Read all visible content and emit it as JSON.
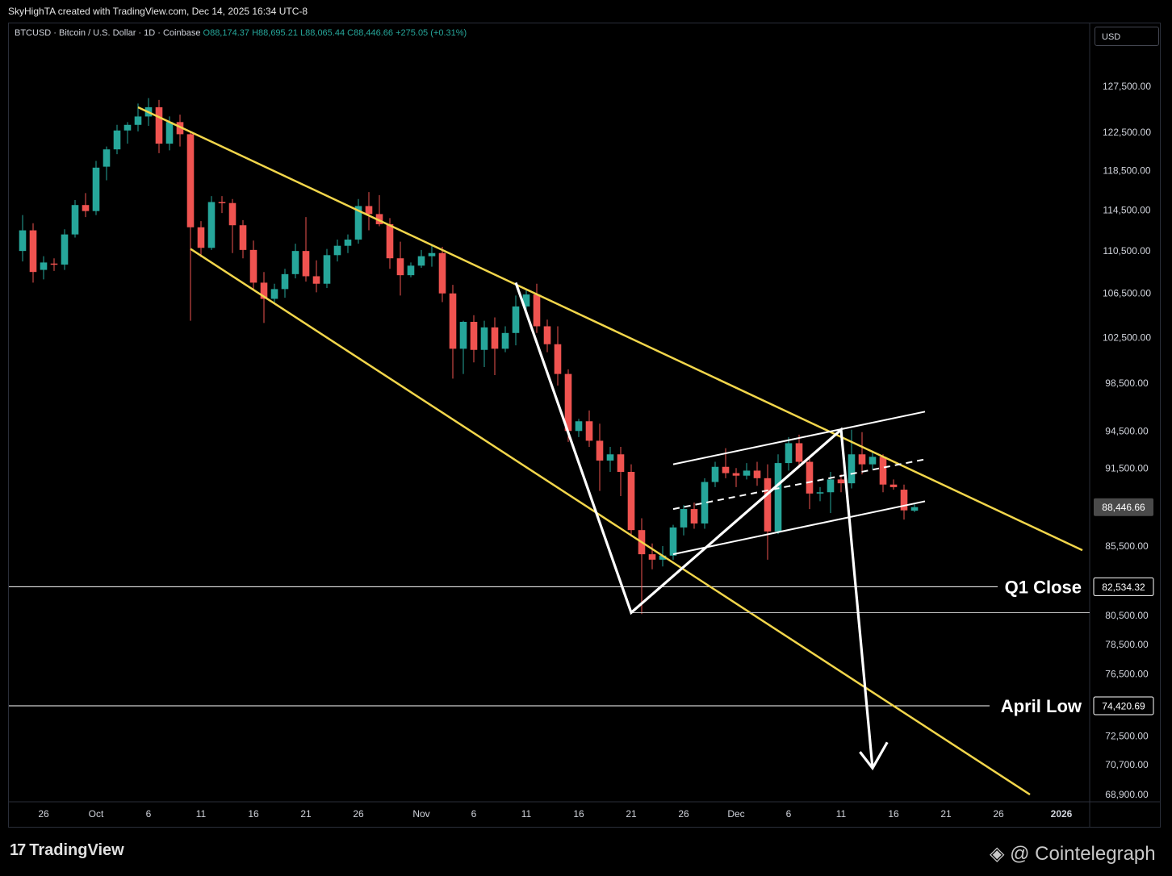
{
  "header": {
    "attribution": "SkyHighTA created with TradingView.com, Dec 14, 2025 16:34 UTC-8"
  },
  "symbol": {
    "name": "BTCUSD · Bitcoin / U.S. Dollar · 1D · Coinbase",
    "open": "O88,174.37",
    "high": "H88,695.21",
    "low": "L88,065.44",
    "close": "C88,446.66",
    "change": "+275.05 (+0.31%)"
  },
  "currency": "USD",
  "branding": {
    "tradingview": "TradingView",
    "cointelegraph": "@ Cointelegraph"
  },
  "colors": {
    "up": "#26a69a",
    "down": "#ef5350",
    "trendline": "#f2d64b",
    "pattern": "#ffffff"
  },
  "chart_data": {
    "type": "candlestick",
    "yscale": "log",
    "y_ticks": [
      "127,500.00",
      "122,500.00",
      "118,500.00",
      "114,500.00",
      "110,500.00",
      "106,500.00",
      "102,500.00",
      "98,500.00",
      "94,500.00",
      "91,500.00",
      "85,500.00",
      "80,500.00",
      "78,500.00",
      "76,500.00",
      "72,500.00",
      "70,700.00",
      "68,900.00"
    ],
    "x_ticks": [
      {
        "label": "26",
        "day": -9
      },
      {
        "label": "Oct",
        "day": -4
      },
      {
        "label": "6",
        "day": 1
      },
      {
        "label": "11",
        "day": 6
      },
      {
        "label": "16",
        "day": 11
      },
      {
        "label": "21",
        "day": 16
      },
      {
        "label": "26",
        "day": 21
      },
      {
        "label": "Nov",
        "day": 27
      },
      {
        "label": "6",
        "day": 32
      },
      {
        "label": "11",
        "day": 37
      },
      {
        "label": "16",
        "day": 42
      },
      {
        "label": "21",
        "day": 47
      },
      {
        "label": "26",
        "day": 52
      },
      {
        "label": "Dec",
        "day": 57
      },
      {
        "label": "6",
        "day": 62
      },
      {
        "label": "11",
        "day": 67
      },
      {
        "label": "16",
        "day": 72
      },
      {
        "label": "21",
        "day": 77
      },
      {
        "label": "26",
        "day": 82
      },
      {
        "label": "2026",
        "day": 88
      }
    ],
    "price_labels": [
      {
        "text": "88,446.66",
        "price": 88446.66,
        "style": "current"
      },
      {
        "text": "82,534.32",
        "price": 82534.32,
        "style": "level"
      },
      {
        "text": "74,420.69",
        "price": 74420.69,
        "style": "level"
      }
    ],
    "levels": [
      {
        "name": "Q1 Close",
        "price": 82534.32
      },
      {
        "name": "April Low",
        "price": 74420.69
      }
    ],
    "candles": [
      {
        "d": -11,
        "o": 110500,
        "h": 114000,
        "l": 109500,
        "c": 112500
      },
      {
        "d": -10,
        "o": 112500,
        "h": 113200,
        "l": 107500,
        "c": 108500
      },
      {
        "d": -9,
        "o": 108700,
        "h": 110000,
        "l": 107800,
        "c": 109400
      },
      {
        "d": -8,
        "o": 109300,
        "h": 109800,
        "l": 108600,
        "c": 109200
      },
      {
        "d": -7,
        "o": 109200,
        "h": 112600,
        "l": 108700,
        "c": 112100
      },
      {
        "d": -6,
        "o": 112100,
        "h": 115500,
        "l": 111800,
        "c": 115000
      },
      {
        "d": -5,
        "o": 115000,
        "h": 116200,
        "l": 113800,
        "c": 114400
      },
      {
        "d": -4,
        "o": 114400,
        "h": 119500,
        "l": 114000,
        "c": 118800
      },
      {
        "d": -3,
        "o": 118900,
        "h": 121000,
        "l": 117500,
        "c": 120700
      },
      {
        "d": -2,
        "o": 120700,
        "h": 123300,
        "l": 120200,
        "c": 122700
      },
      {
        "d": -1,
        "o": 122700,
        "h": 123600,
        "l": 121300,
        "c": 123300
      },
      {
        "d": 0,
        "o": 123300,
        "h": 125600,
        "l": 122600,
        "c": 124200
      },
      {
        "d": 1,
        "o": 124200,
        "h": 126200,
        "l": 123200,
        "c": 125200
      },
      {
        "d": 2,
        "o": 125200,
        "h": 126000,
        "l": 120300,
        "c": 121300
      },
      {
        "d": 3,
        "o": 121300,
        "h": 124200,
        "l": 120600,
        "c": 123600
      },
      {
        "d": 4,
        "o": 123600,
        "h": 124400,
        "l": 121000,
        "c": 122300
      },
      {
        "d": 5,
        "o": 122300,
        "h": 122600,
        "l": 104000,
        "c": 112800
      },
      {
        "d": 6,
        "o": 112800,
        "h": 113400,
        "l": 109900,
        "c": 110800
      },
      {
        "d": 7,
        "o": 110800,
        "h": 115900,
        "l": 110600,
        "c": 115300
      },
      {
        "d": 8,
        "o": 115300,
        "h": 115900,
        "l": 114200,
        "c": 115200
      },
      {
        "d": 9,
        "o": 115200,
        "h": 115600,
        "l": 110300,
        "c": 113000
      },
      {
        "d": 10,
        "o": 113000,
        "h": 113500,
        "l": 109800,
        "c": 110600
      },
      {
        "d": 11,
        "o": 110600,
        "h": 111500,
        "l": 106800,
        "c": 107500
      },
      {
        "d": 12,
        "o": 107500,
        "h": 108500,
        "l": 103800,
        "c": 106000
      },
      {
        "d": 13,
        "o": 106000,
        "h": 107400,
        "l": 105500,
        "c": 106900
      },
      {
        "d": 14,
        "o": 106900,
        "h": 108800,
        "l": 106100,
        "c": 108300
      },
      {
        "d": 15,
        "o": 108300,
        "h": 111200,
        "l": 107900,
        "c": 110500
      },
      {
        "d": 16,
        "o": 110500,
        "h": 113800,
        "l": 107600,
        "c": 108100
      },
      {
        "d": 17,
        "o": 108100,
        "h": 109600,
        "l": 106600,
        "c": 107400
      },
      {
        "d": 18,
        "o": 107400,
        "h": 110700,
        "l": 107000,
        "c": 110100
      },
      {
        "d": 19,
        "o": 110100,
        "h": 111600,
        "l": 109500,
        "c": 111000
      },
      {
        "d": 20,
        "o": 111000,
        "h": 112100,
        "l": 110300,
        "c": 111600
      },
      {
        "d": 21,
        "o": 111600,
        "h": 115600,
        "l": 111200,
        "c": 114900
      },
      {
        "d": 22,
        "o": 114900,
        "h": 116300,
        "l": 112500,
        "c": 114100
      },
      {
        "d": 23,
        "o": 114100,
        "h": 116000,
        "l": 112900,
        "c": 113100
      },
      {
        "d": 24,
        "o": 113100,
        "h": 113700,
        "l": 108800,
        "c": 109800
      },
      {
        "d": 25,
        "o": 109800,
        "h": 111400,
        "l": 106300,
        "c": 108200
      },
      {
        "d": 26,
        "o": 108200,
        "h": 109400,
        "l": 108000,
        "c": 109100
      },
      {
        "d": 27,
        "o": 109100,
        "h": 110600,
        "l": 108900,
        "c": 110000
      },
      {
        "d": 28,
        "o": 110000,
        "h": 111100,
        "l": 109000,
        "c": 110300
      },
      {
        "d": 29,
        "o": 110300,
        "h": 110900,
        "l": 105700,
        "c": 106500
      },
      {
        "d": 30,
        "o": 106500,
        "h": 107300,
        "l": 98900,
        "c": 101500
      },
      {
        "d": 31,
        "o": 101500,
        "h": 104000,
        "l": 99300,
        "c": 103900
      },
      {
        "d": 32,
        "o": 103900,
        "h": 104500,
        "l": 100300,
        "c": 101400
      },
      {
        "d": 33,
        "o": 101400,
        "h": 104000,
        "l": 99900,
        "c": 103400
      },
      {
        "d": 34,
        "o": 103400,
        "h": 104300,
        "l": 99200,
        "c": 101500
      },
      {
        "d": 35,
        "o": 101500,
        "h": 103500,
        "l": 101200,
        "c": 102900
      },
      {
        "d": 36,
        "o": 102900,
        "h": 106300,
        "l": 101800,
        "c": 105300
      },
      {
        "d": 37,
        "o": 105300,
        "h": 106900,
        "l": 104600,
        "c": 106400
      },
      {
        "d": 38,
        "o": 106400,
        "h": 107400,
        "l": 102900,
        "c": 103500
      },
      {
        "d": 39,
        "o": 103500,
        "h": 104100,
        "l": 101200,
        "c": 101900
      },
      {
        "d": 40,
        "o": 101900,
        "h": 103500,
        "l": 98300,
        "c": 99300
      },
      {
        "d": 41,
        "o": 99300,
        "h": 99700,
        "l": 93600,
        "c": 94500
      },
      {
        "d": 42,
        "o": 94500,
        "h": 95500,
        "l": 94000,
        "c": 95300
      },
      {
        "d": 43,
        "o": 95300,
        "h": 96200,
        "l": 93200,
        "c": 93700
      },
      {
        "d": 44,
        "o": 93700,
        "h": 95100,
        "l": 89700,
        "c": 92100
      },
      {
        "d": 45,
        "o": 92100,
        "h": 93200,
        "l": 91200,
        "c": 92600
      },
      {
        "d": 46,
        "o": 92600,
        "h": 93200,
        "l": 89300,
        "c": 91200
      },
      {
        "d": 47,
        "o": 91200,
        "h": 91800,
        "l": 86200,
        "c": 86700
      },
      {
        "d": 48,
        "o": 86700,
        "h": 87600,
        "l": 80600,
        "c": 84900
      },
      {
        "d": 49,
        "o": 84900,
        "h": 85700,
        "l": 83800,
        "c": 84500
      },
      {
        "d": 50,
        "o": 84500,
        "h": 85500,
        "l": 84000,
        "c": 84800
      },
      {
        "d": 51,
        "o": 84800,
        "h": 87100,
        "l": 84500,
        "c": 86900
      },
      {
        "d": 52,
        "o": 86900,
        "h": 88600,
        "l": 86300,
        "c": 88300
      },
      {
        "d": 53,
        "o": 88300,
        "h": 88800,
        "l": 86800,
        "c": 87200
      },
      {
        "d": 54,
        "o": 87200,
        "h": 90700,
        "l": 86800,
        "c": 90400
      },
      {
        "d": 55,
        "o": 90400,
        "h": 92000,
        "l": 90000,
        "c": 91600
      },
      {
        "d": 56,
        "o": 91600,
        "h": 93100,
        "l": 90700,
        "c": 91100
      },
      {
        "d": 57,
        "o": 91100,
        "h": 91500,
        "l": 90000,
        "c": 90900
      },
      {
        "d": 58,
        "o": 90900,
        "h": 91900,
        "l": 90600,
        "c": 91300
      },
      {
        "d": 59,
        "o": 91300,
        "h": 92000,
        "l": 90100,
        "c": 90700
      },
      {
        "d": 60,
        "o": 90700,
        "h": 91800,
        "l": 84500,
        "c": 86600
      },
      {
        "d": 61,
        "o": 86600,
        "h": 92600,
        "l": 86400,
        "c": 91900
      },
      {
        "d": 62,
        "o": 91900,
        "h": 94000,
        "l": 91300,
        "c": 93500
      },
      {
        "d": 63,
        "o": 93500,
        "h": 94200,
        "l": 91600,
        "c": 92000
      },
      {
        "d": 64,
        "o": 92000,
        "h": 92400,
        "l": 88300,
        "c": 89500
      },
      {
        "d": 65,
        "o": 89500,
        "h": 90000,
        "l": 88900,
        "c": 89600
      },
      {
        "d": 66,
        "o": 89600,
        "h": 91200,
        "l": 88000,
        "c": 90600
      },
      {
        "d": 67,
        "o": 90600,
        "h": 91000,
        "l": 89600,
        "c": 90300
      },
      {
        "d": 68,
        "o": 90300,
        "h": 94600,
        "l": 89900,
        "c": 92600
      },
      {
        "d": 69,
        "o": 92600,
        "h": 94400,
        "l": 91000,
        "c": 91800
      },
      {
        "d": 70,
        "o": 91800,
        "h": 92900,
        "l": 91400,
        "c": 92400
      },
      {
        "d": 71,
        "o": 92400,
        "h": 92600,
        "l": 89600,
        "c": 90200
      },
      {
        "d": 72,
        "o": 90200,
        "h": 90600,
        "l": 89800,
        "c": 90000
      },
      {
        "d": 73,
        "o": 89800,
        "h": 90200,
        "l": 87500,
        "c": 88200
      },
      {
        "d": 74,
        "o": 88174.37,
        "h": 88695.21,
        "l": 88065.44,
        "c": 88446.66
      }
    ],
    "annotations": {
      "trendlines": [
        {
          "p1": {
            "d": 0,
            "price": 125200
          },
          "p2": {
            "d": 90,
            "price": 85200
          }
        },
        {
          "p1": {
            "d": 5,
            "price": 110700
          },
          "p2": {
            "d": 85,
            "price": 68900
          }
        }
      ],
      "channel": {
        "upper": {
          "p1": {
            "d": 51,
            "price": 91800
          },
          "p2": {
            "d": 75,
            "price": 96100
          }
        },
        "middle": {
          "p1": {
            "d": 51,
            "price": 88300
          },
          "p2": {
            "d": 75,
            "price": 92200
          }
        },
        "lower": {
          "p1": {
            "d": 51,
            "price": 84900
          },
          "p2": {
            "d": 75,
            "price": 88900
          }
        }
      },
      "zigzag": [
        {
          "d": 36,
          "price": 107500
        },
        {
          "d": 47,
          "price": 80700
        },
        {
          "d": 67,
          "price": 94600
        },
        {
          "d": 70,
          "price": 70500
        }
      ],
      "arrow_head": [
        {
          "d": 68.8,
          "price": 71500
        },
        {
          "d": 70,
          "price": 70500
        },
        {
          "d": 71.4,
          "price": 72100
        }
      ],
      "lows_line": {
        "from_day": 47,
        "price": 80700
      }
    }
  }
}
